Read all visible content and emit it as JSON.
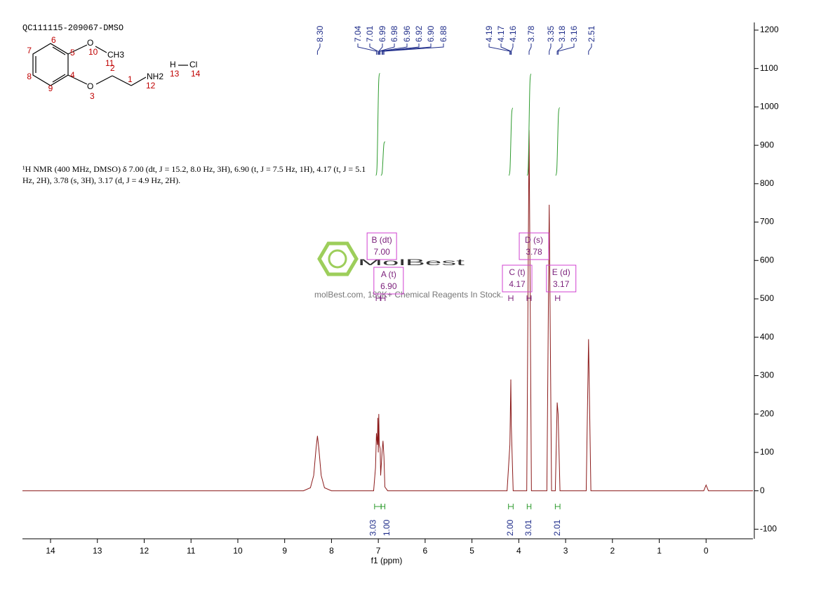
{
  "chart_data": {
    "type": "line",
    "title": "QC111115-209067-DMSO",
    "xlabel": "f1 (ppm)",
    "xlim": [
      14.6,
      -1.0
    ],
    "ylim": [
      -125,
      1220
    ],
    "xticks": [
      14,
      13,
      12,
      11,
      10,
      9,
      8,
      7,
      6,
      5,
      4,
      3,
      2,
      1,
      0
    ],
    "yticks": [
      -100,
      0,
      100,
      200,
      300,
      400,
      500,
      600,
      700,
      800,
      900,
      1000,
      1100,
      1200
    ],
    "series": [
      {
        "color": "#8b1a1a",
        "x": [
          14.6,
          8.6,
          8.45,
          8.38,
          8.33,
          8.3,
          8.27,
          8.22,
          8.15,
          8.0,
          7.1,
          7.06,
          7.04,
          7.02,
          7.01,
          7.0,
          6.99,
          6.98,
          6.96,
          6.95,
          6.92,
          6.9,
          6.88,
          6.86,
          6.8,
          4.25,
          4.19,
          4.17,
          4.16,
          4.12,
          3.83,
          3.78,
          3.73,
          3.4,
          3.35,
          3.3,
          3.22,
          3.18,
          3.16,
          3.12,
          2.56,
          2.51,
          2.46,
          0.05,
          0,
          -0.05,
          -1.0
        ],
        "values": [
          0,
          0,
          8,
          40,
          110,
          143,
          110,
          40,
          8,
          0,
          0,
          60,
          150,
          120,
          190,
          100,
          200,
          120,
          110,
          40,
          100,
          130,
          90,
          10,
          0,
          0,
          120,
          290,
          170,
          0,
          0,
          940,
          0,
          0,
          745,
          0,
          0,
          230,
          200,
          0,
          0,
          395,
          0,
          0,
          15,
          0,
          0
        ]
      }
    ],
    "peaks": [
      {
        "value": 8.3,
        "label": "8.30"
      },
      {
        "value": 7.04,
        "label": "7.04"
      },
      {
        "value": 7.01,
        "label": "7.01"
      },
      {
        "value": 6.99,
        "label": "6.99"
      },
      {
        "value": 6.98,
        "label": "6.98"
      },
      {
        "value": 6.96,
        "label": "6.96"
      },
      {
        "value": 6.92,
        "label": "6.92"
      },
      {
        "value": 6.9,
        "label": "6.90"
      },
      {
        "value": 6.88,
        "label": "6.88"
      },
      {
        "value": 4.19,
        "label": "4.19"
      },
      {
        "value": 4.17,
        "label": "4.17"
      },
      {
        "value": 4.16,
        "label": "4.16"
      },
      {
        "value": 3.78,
        "label": "3.78"
      },
      {
        "value": 3.35,
        "label": "3.35"
      },
      {
        "value": 3.18,
        "label": "3.18"
      },
      {
        "value": 3.16,
        "label": "3.16"
      },
      {
        "value": 2.51,
        "label": "2.51"
      }
    ],
    "integrals": [
      {
        "from": 7.08,
        "to": 6.94,
        "value": 3.03,
        "label": "3.03"
      },
      {
        "from": 6.94,
        "to": 6.86,
        "value": 1.0,
        "label": "1.00"
      },
      {
        "from": 4.22,
        "to": 4.12,
        "value": 2.0,
        "label": "2.00"
      },
      {
        "from": 3.82,
        "to": 3.74,
        "value": 3.01,
        "label": "3.01"
      },
      {
        "from": 3.22,
        "to": 3.12,
        "value": 2.01,
        "label": "2.01"
      }
    ],
    "multiplets": [
      {
        "name": "B (dt)",
        "shift": {
          "value": 7.0,
          "label": "7.00"
        }
      },
      {
        "name": "A (t)",
        "shift": {
          "value": 6.9,
          "label": "6.90"
        }
      },
      {
        "name": "D (s)",
        "shift": {
          "value": 3.78,
          "label": "3.78"
        }
      },
      {
        "name": "C (t)",
        "shift": {
          "value": 4.17,
          "label": "4.17"
        }
      },
      {
        "name": "E (d)",
        "shift": {
          "value": 3.17,
          "label": "3.17"
        }
      }
    ],
    "description": [
      "¹H NMR (400 MHz, DMSO) δ 7.00 (dt, J = 15.2, 8.0 Hz, 3H), 6.90 (t, J = 7.5 Hz, 1H), 4.17 (t, J = 5.1",
      "Hz, 2H), 3.78 (s, 3H), 3.17 (d, J = 4.9 Hz, 2H)."
    ],
    "watermark": {
      "brand": "MolBest",
      "tagline": "molBest.com, 180K+ Chemical Reagents In Stock."
    },
    "structure": {
      "atoms": [
        "O",
        "CH3",
        "O",
        "NH2",
        "H",
        "Cl"
      ],
      "numbers": [
        "6",
        "7",
        "8",
        "9",
        "4",
        "5",
        "10",
        "11",
        "2",
        "3",
        "1",
        "12",
        "13",
        "14"
      ]
    }
  }
}
